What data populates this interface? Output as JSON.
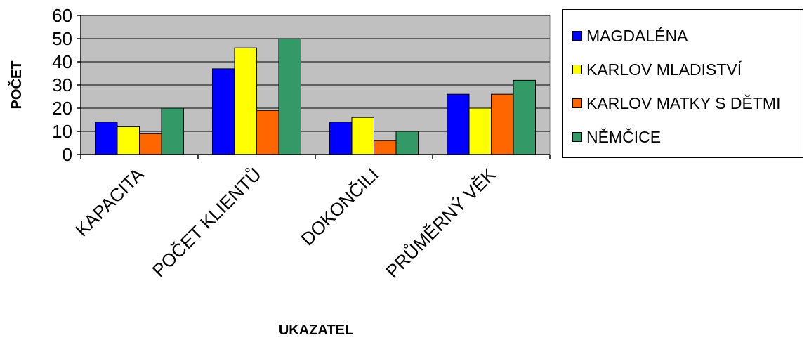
{
  "chart_data": {
    "type": "bar",
    "title": "",
    "xlabel": "UKAZATEL",
    "ylabel": "POČET",
    "ylim": [
      0,
      60
    ],
    "yticks": [
      0,
      10,
      20,
      30,
      40,
      50,
      60
    ],
    "grid": true,
    "legend_position": "right",
    "categories": [
      "KAPACITA",
      "POČET KLIENTŮ",
      "DOKONČILI",
      "PRŮMĚRNÝ VĚK"
    ],
    "series": [
      {
        "name": "MAGDALÉNA",
        "color": "#0000FF",
        "values": [
          14,
          37,
          14,
          26
        ]
      },
      {
        "name": "KARLOV MLADISTVÍ",
        "color": "#FFFF00",
        "values": [
          12,
          46,
          16,
          20
        ]
      },
      {
        "name": "KARLOV MATKY S DĚTMI",
        "color": "#FF6600",
        "values": [
          9,
          19,
          6,
          26
        ]
      },
      {
        "name": "NĚMČICE",
        "color": "#339966",
        "values": [
          20,
          50,
          10,
          32
        ]
      }
    ],
    "plot_background": "#C0C0C0"
  }
}
